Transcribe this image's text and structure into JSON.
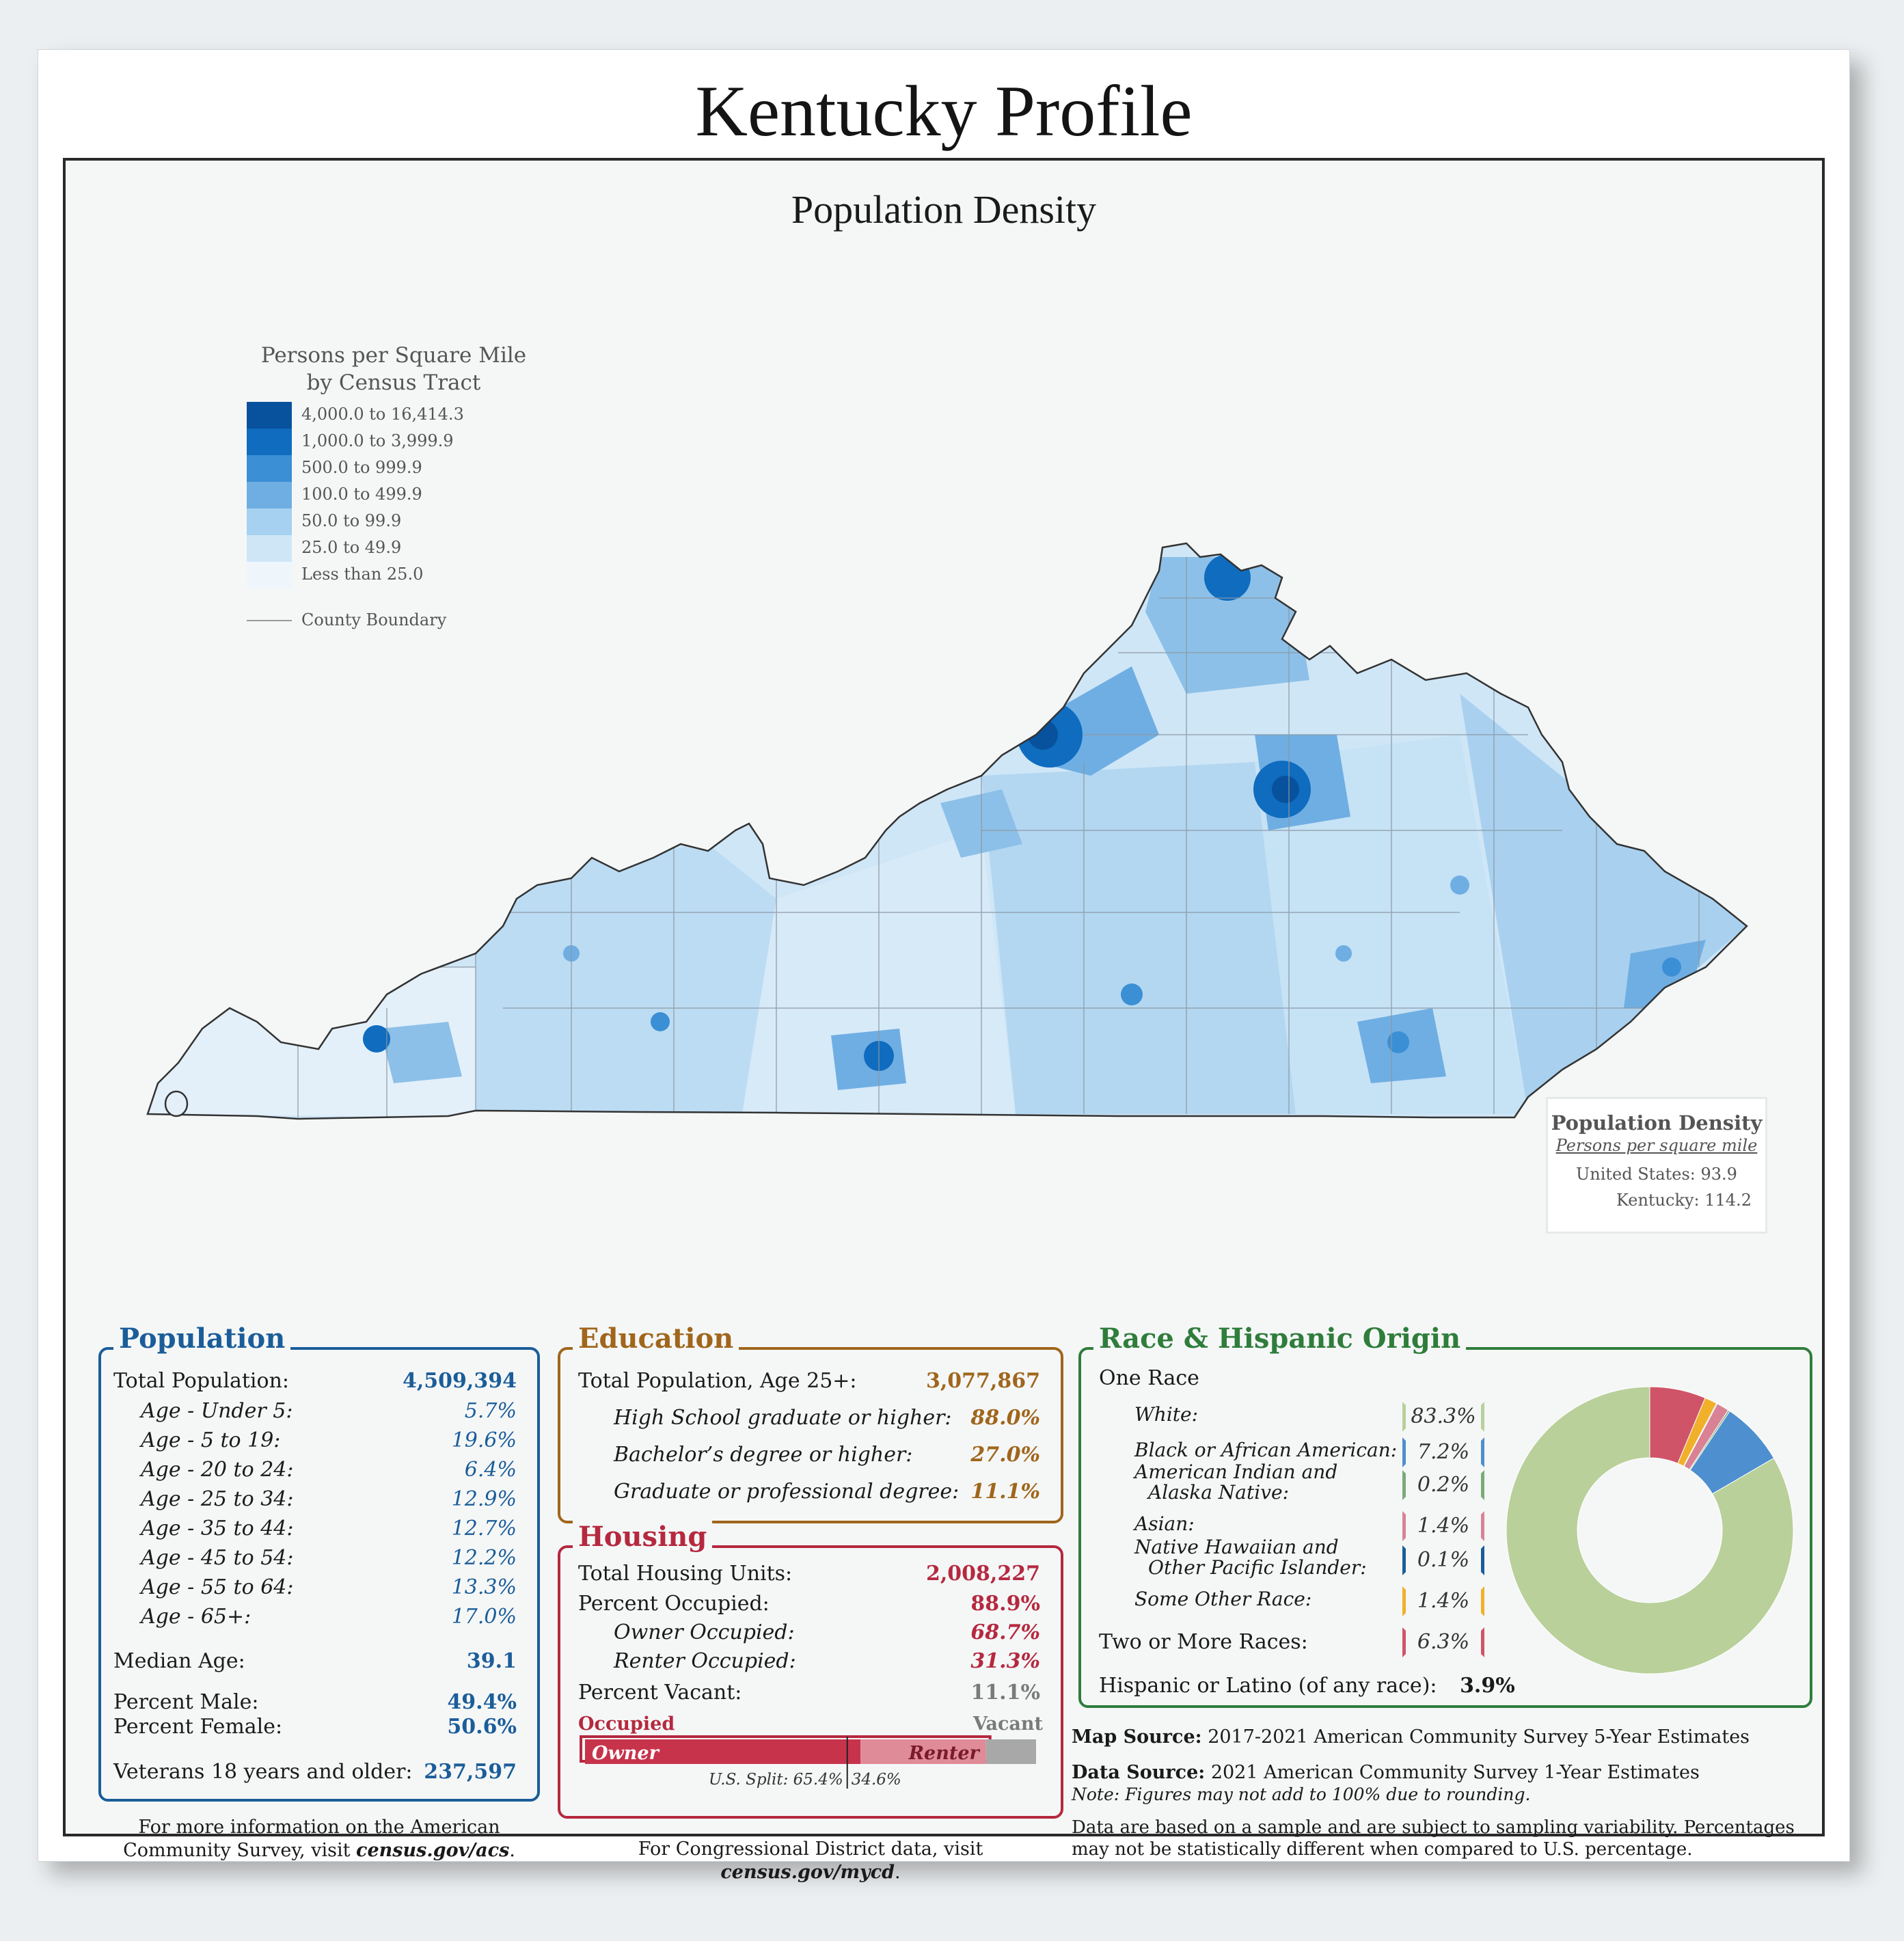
{
  "title": "Kentucky Profile",
  "map": {
    "title": "Population Density",
    "legend": {
      "title_line1": "Persons per Square Mile",
      "title_line2": "by Census Tract",
      "classes": [
        {
          "label": "4,000.0 to 16,414.3",
          "color": "#08519c"
        },
        {
          "label": "1,000.0 to 3,999.9",
          "color": "#0f6cbf"
        },
        {
          "label": "500.0 to 999.9",
          "color": "#3b8fd4"
        },
        {
          "label": "100.0 to 499.9",
          "color": "#6faee3"
        },
        {
          "label": "50.0 to 99.9",
          "color": "#a6d1f0"
        },
        {
          "label": "25.0 to 49.9",
          "color": "#cfe6f7"
        },
        {
          "label": "Less than 25.0",
          "color": "#eef6fc"
        }
      ],
      "county_boundary": "County Boundary"
    },
    "density_box": {
      "title": "Population Density",
      "subtitle": "Persons per square mile",
      "us_label": "United States:",
      "us_value": "93.9",
      "ky_label": "Kentucky:",
      "ky_value": "114.2"
    }
  },
  "population": {
    "title": "Population",
    "total_label": "Total Population:",
    "total_value": "4,509,394",
    "ages": [
      {
        "label": "Age - Under 5:",
        "value": "5.7%"
      },
      {
        "label": "Age - 5 to 19:",
        "value": "19.6%"
      },
      {
        "label": "Age - 20 to 24:",
        "value": "6.4%"
      },
      {
        "label": "Age - 25 to 34:",
        "value": "12.9%"
      },
      {
        "label": "Age - 35 to 44:",
        "value": "12.7%"
      },
      {
        "label": "Age - 45 to 54:",
        "value": "12.2%"
      },
      {
        "label": "Age - 55 to 64:",
        "value": "13.3%"
      },
      {
        "label": "Age - 65+:",
        "value": "17.0%"
      }
    ],
    "median_label": "Median Age:",
    "median_value": "39.1",
    "male_label": "Percent Male:",
    "male_value": "49.4%",
    "female_label": "Percent Female:",
    "female_value": "50.6%",
    "veterans_label": "Veterans 18 years and older:",
    "veterans_value": "237,597"
  },
  "education": {
    "title": "Education",
    "total_label": "Total Population, Age 25+:",
    "total_value": "3,077,867",
    "rows": [
      {
        "label": "High School  graduate or higher:",
        "value": "88.0%"
      },
      {
        "label": "Bachelor’s degree or higher:",
        "value": "27.0%"
      },
      {
        "label": "Graduate or professional degree:",
        "value": "11.1%"
      }
    ]
  },
  "housing": {
    "title": "Housing",
    "total_label": "Total Housing Units:",
    "total_value": "2,008,227",
    "occupied_label": "Percent Occupied:",
    "occupied_value": "88.9%",
    "owner_label": "Owner Occupied:",
    "owner_value": "68.7%",
    "renter_label": "Renter Occupied:",
    "renter_value": "31.3%",
    "vacant_label": "Percent Vacant:",
    "vacant_value": "11.1%",
    "bar": {
      "occupied_label": "Occupied",
      "vacant_label": "Vacant",
      "owner_label": "Owner",
      "renter_label": "Renter",
      "occupied_share": 88.9,
      "owner_share": 68.7,
      "renter_share": 31.3,
      "us_split_owner": 65.4,
      "us_split_renter": 34.6,
      "us_split_text": "U.S. Split: 65.4%",
      "us_split_text2": "34.6%"
    }
  },
  "race": {
    "title": "Race & Hispanic Origin",
    "one_race": "One Race",
    "rows": [
      {
        "label": "White:",
        "value": "83.3%",
        "color": "#b9d09a"
      },
      {
        "label": "Black or African American:",
        "value": "7.2%",
        "color": "#4e8fcf"
      },
      {
        "label": "American Indian and",
        "label2": "Alaska Native:",
        "value": "0.2%",
        "color": "#7aab77"
      },
      {
        "label": "Asian:",
        "value": "1.4%",
        "color": "#d98295"
      },
      {
        "label": "Native Hawaiian and",
        "label2": "Other Pacific Islander:",
        "value": "0.1%",
        "color": "#1b5d99"
      },
      {
        "label": "Some Other Race:",
        "value": "1.4%",
        "color": "#f0b02a"
      }
    ],
    "two_more": {
      "label": "Two or More Races:",
      "value": "6.3%",
      "color": "#d05468"
    },
    "hispanic_label": "Hispanic or Latino (of any race):",
    "hispanic_value": "3.9%",
    "donut": [
      83.3,
      7.2,
      0.2,
      1.4,
      0.1,
      1.4,
      6.3
    ]
  },
  "sources": {
    "map_label": "Map Source:",
    "map_text": "2017-2021 American Community Survey 5-Year Estimates",
    "data_label": "Data Source:",
    "data_text": "2021 American Community Survey 1-Year Estimates",
    "note": "Note: Figures may not add to 100% due to rounding.",
    "sampling1": "Data are based on a sample and are subject to sampling variability. Percentages",
    "sampling2": "may not be statistically different when compared to U.S. percentage."
  },
  "footer": {
    "acs_line1": "For more information on the American",
    "acs_line2": "Community Survey, visit ",
    "acs_link": "census.gov/acs",
    "cd_text": "For Congressional District data, visit ",
    "cd_link": "census.gov/mycd"
  }
}
